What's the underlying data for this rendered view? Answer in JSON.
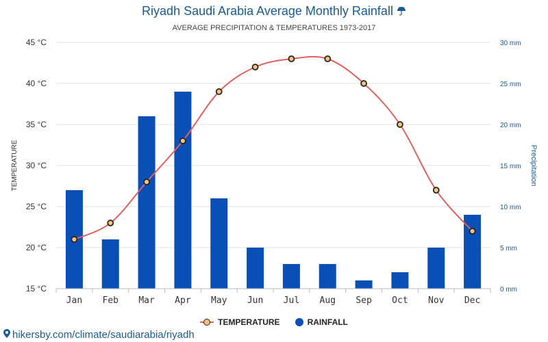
{
  "header": {
    "title": "Riyadh Saudi Arabia Average Monthly Rainfall",
    "title_icon": "umbrella-icon",
    "subtitle": "AVERAGE PRECIPITATION & TEMPERATURES 1973-2017"
  },
  "legend": {
    "temperature": "TEMPERATURE",
    "rainfall": "RAINFALL"
  },
  "source": {
    "icon": "location-pin-icon",
    "text": "hikersby.com/climate/saudiarabia/riyadh"
  },
  "colors": {
    "title": "#1b5a8e",
    "bar": "#0a4fb5",
    "line": "#e06060",
    "marker_fill": "#f7c27a",
    "marker_stroke": "#222222",
    "grid": "#e3e3e3"
  },
  "chart_data": {
    "type": "bar",
    "title": "Riyadh Saudi Arabia Average Monthly Rainfall",
    "subtitle": "AVERAGE PRECIPITATION & TEMPERATURES 1973-2017",
    "categories": [
      "Jan",
      "Feb",
      "Mar",
      "Apr",
      "May",
      "Jun",
      "Jul",
      "Aug",
      "Sep",
      "Oct",
      "Nov",
      "Dec"
    ],
    "series": [
      {
        "name": "RAINFALL",
        "type": "bar",
        "axis": "right",
        "unit": "mm",
        "values": [
          12,
          6,
          21,
          24,
          11,
          5,
          3,
          3,
          1,
          2,
          5,
          9
        ]
      },
      {
        "name": "TEMPERATURE",
        "type": "line",
        "axis": "left",
        "unit": "°C",
        "values": [
          21,
          23,
          28,
          33,
          39,
          42,
          43,
          43,
          40,
          35,
          27,
          22
        ]
      }
    ],
    "y_left": {
      "label": "TEMPERATURE",
      "lim": [
        15,
        45
      ],
      "ticks": [
        15,
        20,
        25,
        30,
        35,
        40,
        45
      ],
      "tick_labels": [
        "15 °C",
        "20 °C",
        "25 °C",
        "30 °C",
        "35 °C",
        "40 °C",
        "45 °C"
      ]
    },
    "y_right": {
      "label": "Precipitation",
      "lim": [
        0,
        30
      ],
      "ticks": [
        0,
        5,
        10,
        15,
        20,
        25,
        30
      ],
      "tick_labels": [
        "0 mm",
        "5 mm",
        "10 mm",
        "15 mm",
        "20 mm",
        "25 mm",
        "30 mm"
      ]
    },
    "grid": true,
    "legend_position": "bottom"
  }
}
